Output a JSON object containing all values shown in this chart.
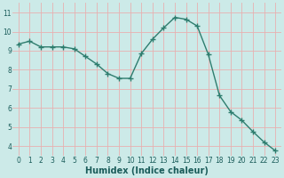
{
  "x": [
    0,
    1,
    2,
    3,
    4,
    5,
    6,
    7,
    8,
    9,
    10,
    11,
    12,
    13,
    14,
    15,
    16,
    17,
    18,
    19,
    20,
    21,
    22,
    23
  ],
  "y": [
    9.35,
    9.5,
    9.2,
    9.2,
    9.2,
    9.1,
    8.7,
    8.3,
    7.8,
    7.55,
    7.55,
    8.85,
    9.6,
    10.2,
    10.75,
    10.65,
    10.3,
    8.8,
    6.65,
    5.8,
    5.35,
    4.75,
    4.2,
    3.75
  ],
  "line_color": "#2e7d6e",
  "marker": "+",
  "markersize": 4,
  "linewidth": 1.0,
  "bg_color": "#cceae8",
  "grid_color": "#e8b0b0",
  "xlabel": "Humidex (Indice chaleur)",
  "xlabel_fontsize": 7,
  "yticks": [
    4,
    5,
    6,
    7,
    8,
    9,
    10,
    11
  ],
  "xtick_labels": [
    "0",
    "1",
    "2",
    "3",
    "4",
    "5",
    "6",
    "7",
    "8",
    "9",
    "10",
    "11",
    "12",
    "13",
    "14",
    "15",
    "16",
    "17",
    "18",
    "19",
    "20",
    "21",
    "22",
    "23"
  ],
  "ylim": [
    3.5,
    11.5
  ],
  "xlim": [
    -0.5,
    23.5
  ],
  "tick_fontsize": 5.5,
  "tick_color": "#1a5c5a"
}
